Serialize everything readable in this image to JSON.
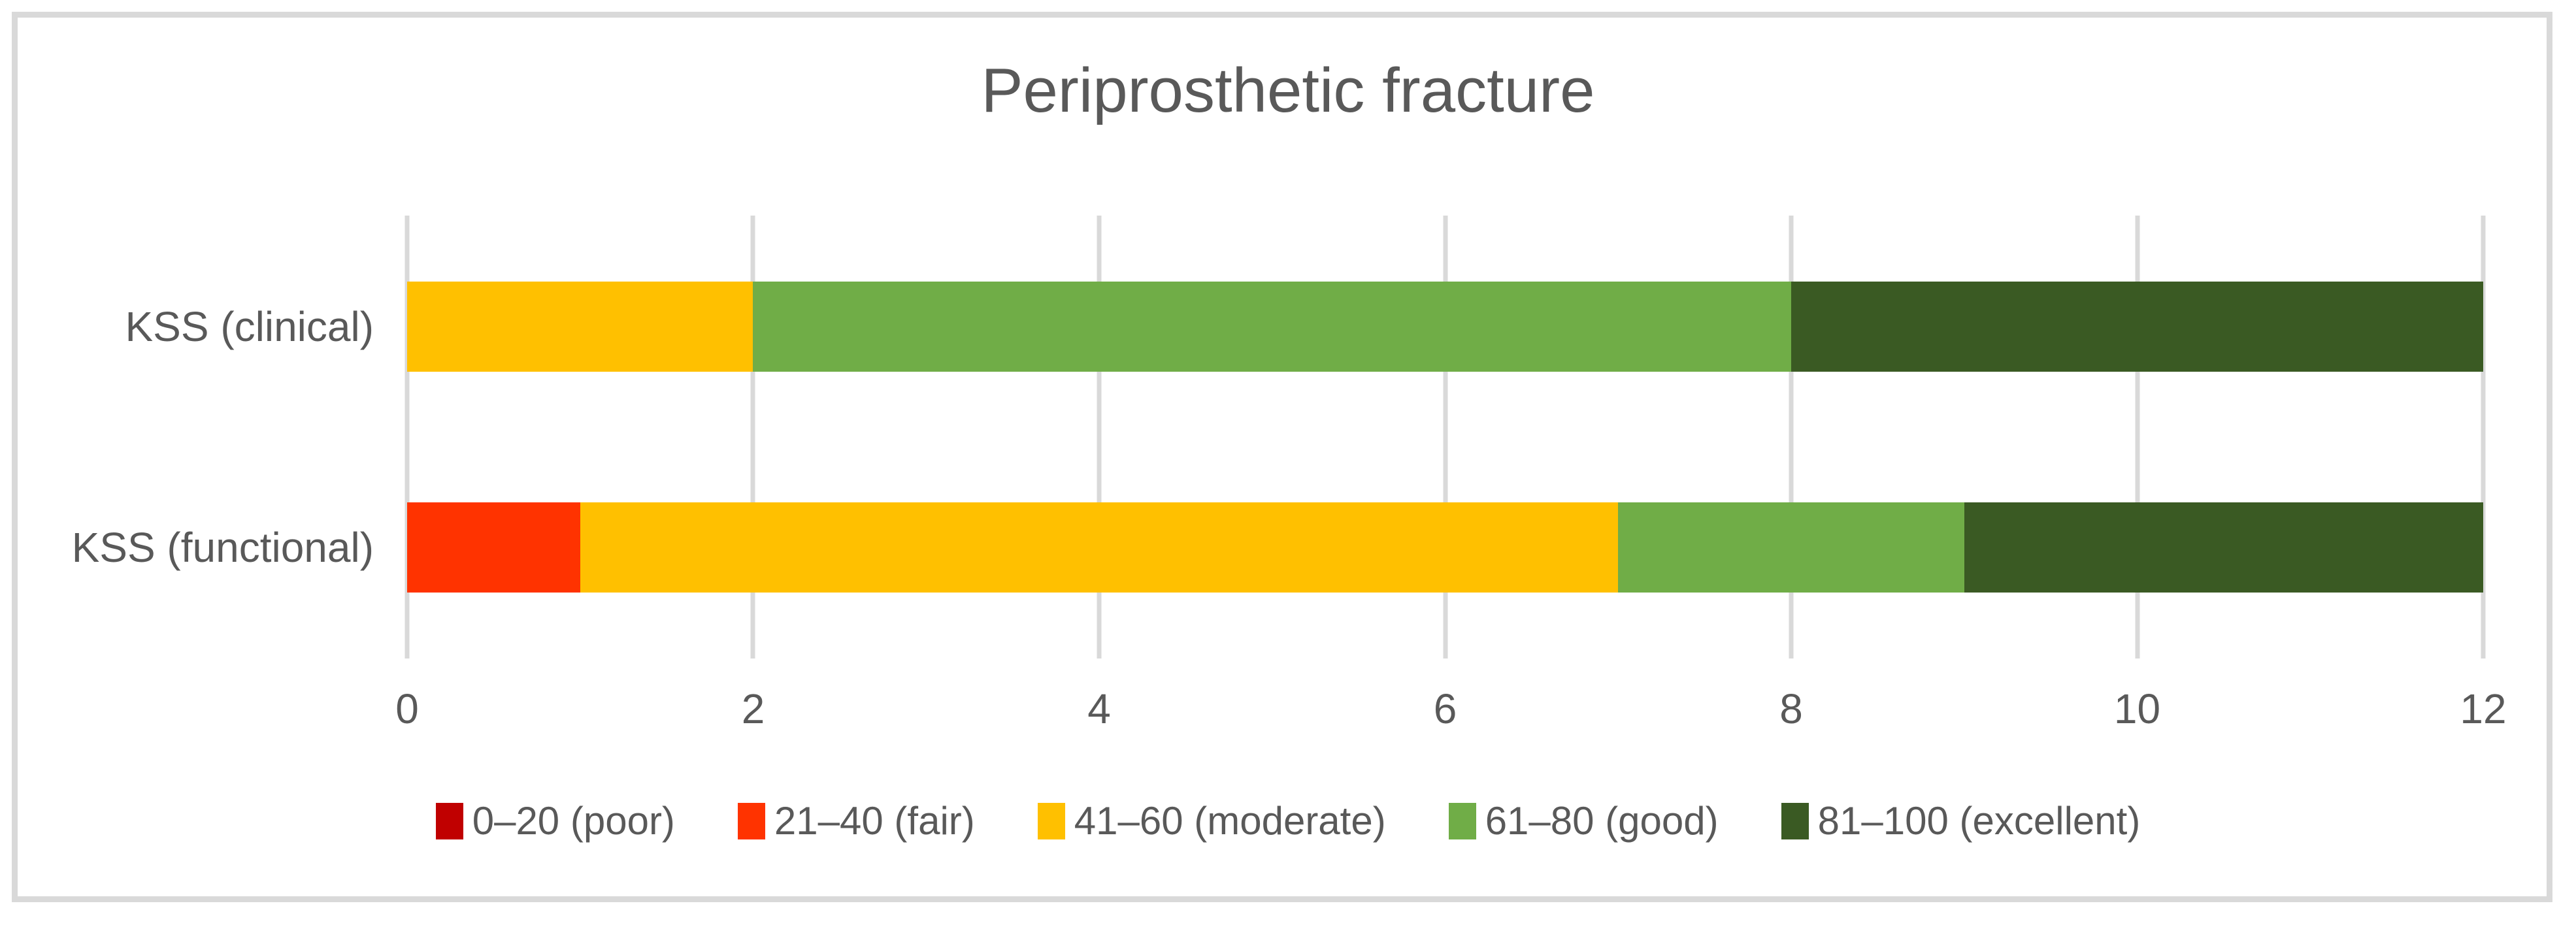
{
  "colors": {
    "text_gray": "#595959",
    "grid_gray": "#D9D9D9",
    "frame_border": "#D9D9D9",
    "background": "#FFFFFF"
  },
  "chart_data": {
    "type": "bar",
    "orientation": "horizontal",
    "stacked": true,
    "title": "Periprosthetic fracture",
    "categories": [
      "KSS (clinical)",
      "KSS (functional)"
    ],
    "series": [
      {
        "name": "0–20 (poor)",
        "color": "#C00000",
        "values": [
          0,
          0
        ]
      },
      {
        "name": "21–40 (fair)",
        "color": "#FF3300",
        "values": [
          0,
          1
        ]
      },
      {
        "name": "41–60 (moderate)",
        "color": "#FFC000",
        "values": [
          2,
          6
        ]
      },
      {
        "name": "61–80 (good)",
        "color": "#70AD47",
        "values": [
          6,
          2
        ]
      },
      {
        "name": "81–100 (excellent)",
        "color": "#3A5A23",
        "values": [
          4,
          3
        ]
      }
    ],
    "xlabel": "",
    "ylabel": "",
    "xlim": [
      0,
      12
    ],
    "xticks": [
      0,
      2,
      4,
      6,
      8,
      10,
      12
    ],
    "grid": true,
    "legend_position": "bottom"
  }
}
